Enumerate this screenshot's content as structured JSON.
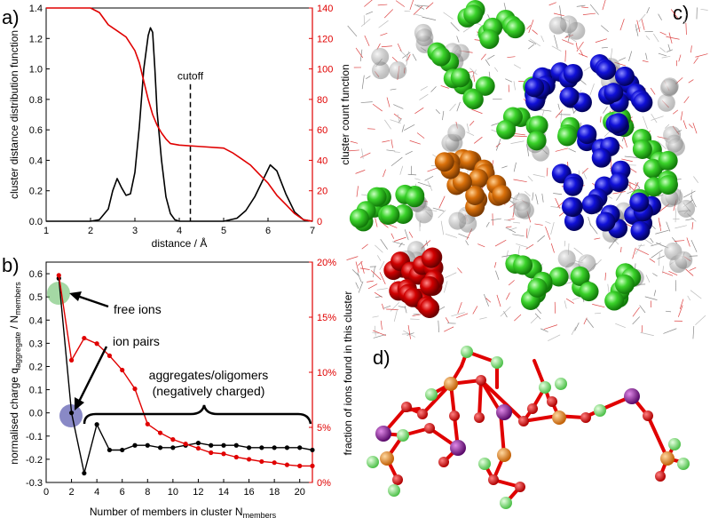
{
  "colors": {
    "black": "#000000",
    "red": "#e00000",
    "green": "#2ec21e",
    "blue": "#0a0ad0",
    "orange": "#d9700a",
    "darkred": "#c80000",
    "purple": "#8a1a9a",
    "grey": "#9a9a9a"
  },
  "panels": {
    "a": "a)",
    "b": "b)",
    "c": "c)",
    "d": "d)"
  },
  "chart_data": [
    {
      "type": "line",
      "panel": "a)",
      "xlabel": "distance / Å",
      "ylabel_left": "cluster distance distribution function",
      "ylabel_right": "cluster count function",
      "xlim": [
        1,
        7
      ],
      "ylim_left": [
        0,
        1.4
      ],
      "ylim_right": [
        0,
        140
      ],
      "xticks": [
        "1",
        "2",
        "3",
        "4",
        "5",
        "6",
        "7"
      ],
      "yticks_left": [
        "0.0",
        "0.2",
        "0.4",
        "0.6",
        "0.8",
        "1.0",
        "1.2",
        "1.4"
      ],
      "yticks_right": [
        "0",
        "20",
        "40",
        "60",
        "80",
        "100",
        "120",
        "140"
      ],
      "annotation": "cutoff",
      "cutoff_x": 4.25,
      "series": [
        {
          "axis": "left",
          "color": "#000000",
          "x": [
            1,
            2,
            2.2,
            2.4,
            2.5,
            2.6,
            2.7,
            2.8,
            2.9,
            3.0,
            3.1,
            3.2,
            3.3,
            3.35,
            3.4,
            3.45,
            3.5,
            3.6,
            3.7,
            3.8,
            3.9,
            4.0,
            4.5,
            5.0,
            5.3,
            5.5,
            5.7,
            5.9,
            6.05,
            6.2,
            6.4,
            6.6,
            6.8,
            7
          ],
          "y": [
            0,
            0,
            0.01,
            0.08,
            0.2,
            0.28,
            0.22,
            0.17,
            0.18,
            0.32,
            0.62,
            1.0,
            1.22,
            1.27,
            1.24,
            1.0,
            0.72,
            0.4,
            0.16,
            0.05,
            0.01,
            0,
            0,
            0,
            0.02,
            0.07,
            0.16,
            0.28,
            0.37,
            0.33,
            0.18,
            0.06,
            0.01,
            0
          ]
        },
        {
          "axis": "right",
          "color": "#e00000",
          "x": [
            1,
            1.5,
            2.0,
            2.2,
            2.4,
            2.6,
            2.8,
            3.0,
            3.1,
            3.2,
            3.3,
            3.4,
            3.5,
            3.6,
            3.7,
            3.8,
            4.0,
            4.5,
            5.0,
            5.2,
            5.4,
            5.6,
            5.8,
            6.0,
            6.2,
            6.4,
            6.6,
            6.8,
            7
          ],
          "y": [
            140,
            140,
            140,
            137,
            129,
            125,
            121,
            112,
            104,
            92,
            80,
            70,
            63,
            58,
            54,
            51,
            50,
            49,
            48,
            45,
            41,
            37,
            31,
            25,
            17,
            11,
            5,
            1,
            0
          ]
        }
      ]
    },
    {
      "type": "line",
      "panel": "b)",
      "xlabel": "Number of members in cluster N",
      "xlabel_sub": "members",
      "ylabel_left": "normalised charge q",
      "ylabel_left_sub1": "aggregate",
      "ylabel_left_mid": " / N",
      "ylabel_left_sub2": "members",
      "ylabel_right": "fraction of ions found in this cluster",
      "xlim": [
        0,
        21
      ],
      "ylim_left": [
        -0.3,
        0.65
      ],
      "ylim_right": [
        0,
        20
      ],
      "xticks": [
        "0",
        "2",
        "4",
        "6",
        "8",
        "10",
        "12",
        "14",
        "16",
        "18",
        "20"
      ],
      "yticks_left": [
        "-0.3",
        "-0.2",
        "-0.1",
        "0.0",
        "0.1",
        "0.2",
        "0.3",
        "0.4",
        "0.5",
        "0.6"
      ],
      "yticks_right": [
        "0%",
        "5%",
        "10%",
        "15%",
        "20%"
      ],
      "series": [
        {
          "axis": "left",
          "color": "#000000",
          "x": [
            1,
            2,
            3,
            4,
            5,
            6,
            7,
            8,
            9,
            10,
            11,
            12,
            13,
            14,
            15,
            16,
            17,
            18,
            19,
            20,
            21
          ],
          "y": [
            0.58,
            0.0,
            -0.26,
            -0.05,
            -0.16,
            -0.16,
            -0.14,
            -0.14,
            -0.15,
            -0.15,
            -0.14,
            -0.13,
            -0.14,
            -0.14,
            -0.14,
            -0.15,
            -0.15,
            -0.15,
            -0.15,
            -0.15,
            -0.16
          ]
        },
        {
          "axis": "right",
          "color": "#e00000",
          "x": [
            1,
            2,
            3,
            4,
            5,
            6,
            7,
            8,
            9,
            10,
            11,
            12,
            13,
            14,
            15,
            16,
            17,
            18,
            19,
            20,
            21
          ],
          "y": [
            18.8,
            11.1,
            13.1,
            12.6,
            11.5,
            10.2,
            8.5,
            5.3,
            4.5,
            3.9,
            3.5,
            3.1,
            2.7,
            2.6,
            2.3,
            2.1,
            1.9,
            1.8,
            1.6,
            1.5,
            1.5
          ]
        }
      ],
      "annotations": {
        "free_ions": "free ions",
        "ion_pairs": "ion pairs",
        "aggregates": "aggregates/oligomers",
        "aggregates_sub": "(negatively charged)"
      }
    }
  ]
}
